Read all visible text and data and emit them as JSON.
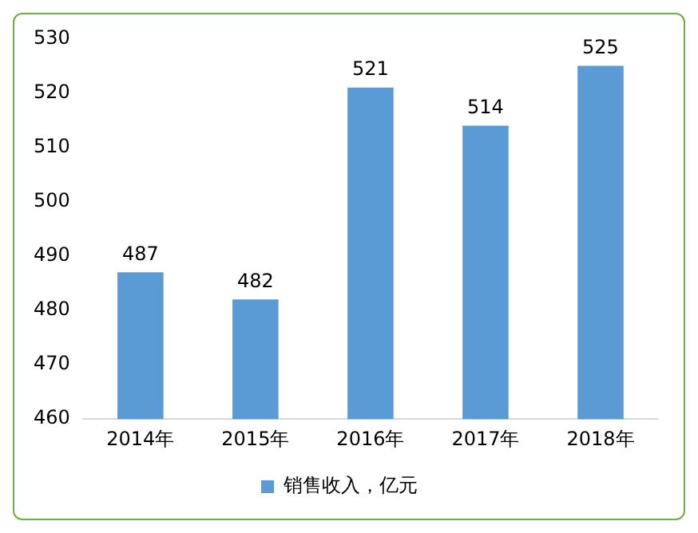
{
  "chart_data": {
    "type": "bar",
    "categories": [
      "2014年",
      "2015年",
      "2016年",
      "2017年",
      "2018年"
    ],
    "series": [
      {
        "name": "销售收入，亿元",
        "color": "#5b9bd5",
        "values": [
          487,
          482,
          521,
          514,
          525
        ]
      }
    ],
    "ylim": [
      460,
      530
    ],
    "yticks": [
      460,
      470,
      480,
      490,
      500,
      510,
      520,
      530
    ],
    "grid": false,
    "legend": "bottom",
    "data_labels": true
  }
}
